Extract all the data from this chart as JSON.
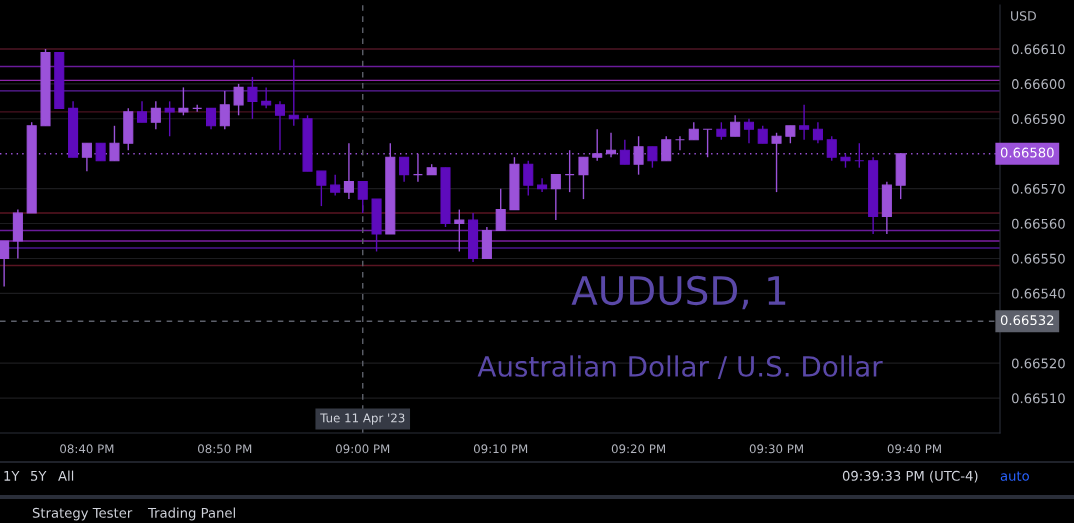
{
  "chart_data": {
    "type": "candlestick",
    "title": "AUDUSD, 1",
    "subtitle": "Australian Dollar / U.S. Dollar",
    "ylabel": "USD",
    "x": [
      20.5667,
      20.5833,
      20.6,
      20.6167,
      20.6333,
      20.65,
      20.6667,
      20.6833,
      20.7,
      20.7167,
      20.7333,
      20.75,
      20.7667,
      20.7833,
      20.8,
      20.8167,
      20.8333,
      20.85,
      20.8667,
      20.8833,
      20.9,
      20.9167,
      20.9333,
      20.95,
      20.9667,
      20.9833,
      21.0,
      21.0167,
      21.0333,
      21.05,
      21.0667,
      21.0833,
      21.1,
      21.1167,
      21.1333,
      21.15,
      21.1667,
      21.1833,
      21.2,
      21.2167,
      21.2333,
      21.25,
      21.2667,
      21.2833,
      21.3,
      21.3167,
      21.3333,
      21.35,
      21.3667,
      21.3833,
      21.4,
      21.4167,
      21.4333,
      21.45,
      21.4667,
      21.4833,
      21.5,
      21.5167,
      21.5333,
      21.55,
      21.5667,
      21.5833,
      21.6,
      21.6167,
      21.6333,
      21.65
    ],
    "ohlc": [
      [
        0.6655,
        0.66555,
        0.66542,
        0.66555
      ],
      [
        0.66555,
        0.66564,
        0.6655,
        0.66563
      ],
      [
        0.66563,
        0.66589,
        0.66563,
        0.66588
      ],
      [
        0.66588,
        0.6661,
        0.66588,
        0.66609
      ],
      [
        0.66609,
        0.66609,
        0.66593,
        0.66593
      ],
      [
        0.66593,
        0.66595,
        0.66579,
        0.66579
      ],
      [
        0.66579,
        0.66583,
        0.66575,
        0.66583
      ],
      [
        0.66583,
        0.66583,
        0.66578,
        0.66578
      ],
      [
        0.66578,
        0.66588,
        0.66578,
        0.66583
      ],
      [
        0.66583,
        0.66593,
        0.66581,
        0.66592
      ],
      [
        0.66592,
        0.66595,
        0.66589,
        0.66589
      ],
      [
        0.66589,
        0.66595,
        0.66587,
        0.66593
      ],
      [
        0.66593,
        0.66595,
        0.66585,
        0.66592
      ],
      [
        0.66592,
        0.66599,
        0.66591,
        0.66593
      ],
      [
        0.66593,
        0.66594,
        0.66592,
        0.66593
      ],
      [
        0.66593,
        0.66593,
        0.66587,
        0.66588
      ],
      [
        0.66588,
        0.66598,
        0.66587,
        0.66594
      ],
      [
        0.66594,
        0.666,
        0.66591,
        0.66599
      ],
      [
        0.66599,
        0.66602,
        0.6659,
        0.66595
      ],
      [
        0.66595,
        0.66599,
        0.66593,
        0.66594
      ],
      [
        0.66594,
        0.66595,
        0.66581,
        0.66591
      ],
      [
        0.66591,
        0.66607,
        0.66588,
        0.6659
      ],
      [
        0.6659,
        0.66591,
        0.66575,
        0.66575
      ],
      [
        0.66575,
        0.66575,
        0.66565,
        0.66571
      ],
      [
        0.66571,
        0.66574,
        0.66568,
        0.66569
      ],
      [
        0.66569,
        0.66583,
        0.66567,
        0.66572
      ],
      [
        0.66572,
        0.66572,
        0.66563,
        0.66567
      ],
      [
        0.66567,
        0.66567,
        0.66552,
        0.66557
      ],
      [
        0.66557,
        0.66583,
        0.66557,
        0.66579
      ],
      [
        0.66579,
        0.66579,
        0.66572,
        0.66574
      ],
      [
        0.66574,
        0.6658,
        0.66572,
        0.66574
      ],
      [
        0.66574,
        0.66577,
        0.66574,
        0.66576
      ],
      [
        0.66576,
        0.66576,
        0.66559,
        0.6656
      ],
      [
        0.6656,
        0.66564,
        0.66552,
        0.66561
      ],
      [
        0.66561,
        0.66563,
        0.66549,
        0.6655
      ],
      [
        0.6655,
        0.66559,
        0.6655,
        0.66558
      ],
      [
        0.66558,
        0.6657,
        0.66558,
        0.66564
      ],
      [
        0.66564,
        0.66579,
        0.66564,
        0.66577
      ],
      [
        0.66577,
        0.66578,
        0.66568,
        0.66571
      ],
      [
        0.66571,
        0.66573,
        0.66569,
        0.6657
      ],
      [
        0.6657,
        0.66574,
        0.66561,
        0.66574
      ],
      [
        0.66574,
        0.66581,
        0.66569,
        0.66574
      ],
      [
        0.66574,
        0.66579,
        0.66567,
        0.66579
      ],
      [
        0.66579,
        0.66587,
        0.66578,
        0.6658
      ],
      [
        0.6658,
        0.66586,
        0.66579,
        0.66581
      ],
      [
        0.66581,
        0.66584,
        0.66577,
        0.66577
      ],
      [
        0.66577,
        0.66585,
        0.66574,
        0.66582
      ],
      [
        0.66582,
        0.66582,
        0.66576,
        0.66578
      ],
      [
        0.66578,
        0.66585,
        0.66578,
        0.66584
      ],
      [
        0.66584,
        0.66585,
        0.66581,
        0.66584
      ],
      [
        0.66584,
        0.66589,
        0.66584,
        0.66587
      ],
      [
        0.66587,
        0.66587,
        0.66579,
        0.66587
      ],
      [
        0.66587,
        0.66589,
        0.66584,
        0.66585
      ],
      [
        0.66585,
        0.66591,
        0.66585,
        0.66589
      ],
      [
        0.66589,
        0.6659,
        0.66583,
        0.66587
      ],
      [
        0.66587,
        0.66588,
        0.66583,
        0.66583
      ],
      [
        0.66583,
        0.66586,
        0.66569,
        0.66585
      ],
      [
        0.66585,
        0.66588,
        0.66583,
        0.66588
      ],
      [
        0.66588,
        0.66594,
        0.66584,
        0.66587
      ],
      [
        0.66587,
        0.66589,
        0.66583,
        0.66584
      ],
      [
        0.66584,
        0.66585,
        0.66578,
        0.66579
      ],
      [
        0.66579,
        0.6658,
        0.66576,
        0.66578
      ],
      [
        0.66578,
        0.66583,
        0.66576,
        0.66578
      ],
      [
        0.66578,
        0.66579,
        0.66557,
        0.66562
      ],
      [
        0.66562,
        0.66572,
        0.66557,
        0.66571
      ],
      [
        0.66571,
        0.6658,
        0.66567,
        0.6658
      ]
    ],
    "colors": [
      "#9b52d9",
      "#9b52d9",
      "#9b52d9",
      "#9b52d9",
      "#5e0bbd",
      "#5e0bbd",
      "#9b52d9",
      "#5e0bbd",
      "#9b52d9",
      "#9b52d9",
      "#5e0bbd",
      "#9b52d9",
      "#5e0bbd",
      "#9b52d9",
      "#9b52d9",
      "#5e0bbd",
      "#9b52d9",
      "#9b52d9",
      "#5e0bbd",
      "#5e0bbd",
      "#5e0bbd",
      "#5e0bbd",
      "#5e0bbd",
      "#5e0bbd",
      "#5e0bbd",
      "#9b52d9",
      "#5e0bbd",
      "#5e0bbd",
      "#9b52d9",
      "#5e0bbd",
      "#9b52d9",
      "#9b52d9",
      "#5e0bbd",
      "#9b52d9",
      "#5e0bbd",
      "#9b52d9",
      "#9b52d9",
      "#9b52d9",
      "#5e0bbd",
      "#5e0bbd",
      "#9b52d9",
      "#9b52d9",
      "#9b52d9",
      "#9b52d9",
      "#9b52d9",
      "#5e0bbd",
      "#9b52d9",
      "#5e0bbd",
      "#9b52d9",
      "#9b52d9",
      "#9b52d9",
      "#9b52d9",
      "#5e0bbd",
      "#9b52d9",
      "#5e0bbd",
      "#5e0bbd",
      "#9b52d9",
      "#9b52d9",
      "#5e0bbd",
      "#5e0bbd",
      "#5e0bbd",
      "#5e0bbd",
      "#5e0bbd",
      "#5e0bbd",
      "#9b52d9",
      "#9b52d9"
    ],
    "xlim": [
      20.5617,
      21.77
    ],
    "xticks": [
      {
        "value": 20.6667,
        "label": "08:40 PM"
      },
      {
        "value": 20.8333,
        "label": "08:50 PM"
      },
      {
        "value": 21.0,
        "label": "09:00 PM"
      },
      {
        "value": 21.1667,
        "label": "09:10 PM"
      },
      {
        "value": 21.3333,
        "label": "09:20 PM"
      },
      {
        "value": 21.5,
        "label": "09:30 PM"
      },
      {
        "value": 21.6667,
        "label": "09:40 PM"
      }
    ],
    "ylim": [
      0.665,
      0.666226
    ],
    "yticks": [
      {
        "value": 0.6651,
        "label": "0.66510"
      },
      {
        "value": 0.6652,
        "label": "0.66520"
      },
      {
        "value": 0.6654,
        "label": "0.66540"
      },
      {
        "value": 0.6655,
        "label": "0.66550"
      },
      {
        "value": 0.6656,
        "label": "0.66560"
      },
      {
        "value": 0.6657,
        "label": "0.66570"
      },
      {
        "value": 0.6659,
        "label": "0.66590"
      },
      {
        "value": 0.666,
        "label": "0.66600"
      },
      {
        "value": 0.6661,
        "label": "0.66610"
      }
    ],
    "grid": "y",
    "ref_lines": [
      {
        "axis": "y",
        "value": 0.6661,
        "color": "#4a1220"
      },
      {
        "axis": "y",
        "value": 0.66605,
        "color": "#6a1b9a"
      },
      {
        "axis": "y",
        "value": 0.66601,
        "color": "#8e24aa"
      },
      {
        "axis": "y",
        "value": 0.66598,
        "color": "#5e1fa0"
      },
      {
        "axis": "y",
        "value": 0.66592,
        "color": "#4a1220"
      },
      {
        "axis": "y",
        "value": 0.66563,
        "color": "#5a1422"
      },
      {
        "axis": "y",
        "value": 0.66558,
        "color": "#6a1b9a"
      },
      {
        "axis": "y",
        "value": 0.66555,
        "color": "#7b1fa2"
      },
      {
        "axis": "y",
        "value": 0.66553,
        "color": "#4a148c"
      },
      {
        "axis": "y",
        "value": 0.66548,
        "color": "#5a1422"
      },
      {
        "axis": "y",
        "value": 0.6658,
        "label": "0.66580",
        "color": "#9b52d9",
        "line_style": "dotted"
      },
      {
        "axis": "y",
        "value": 0.66532,
        "label": "0.66532",
        "color": "#5d606b",
        "line_style": "dashed"
      },
      {
        "axis": "x",
        "value": 21.0,
        "label": "Tue 11 Apr '23",
        "color": "#5d606b",
        "line_style": "dashed"
      }
    ],
    "annotations": [
      "1Y",
      "5Y",
      "All",
      "09:39:33 PM (UTC-4)",
      "auto",
      "Strategy Tester",
      "Trading Panel"
    ]
  }
}
